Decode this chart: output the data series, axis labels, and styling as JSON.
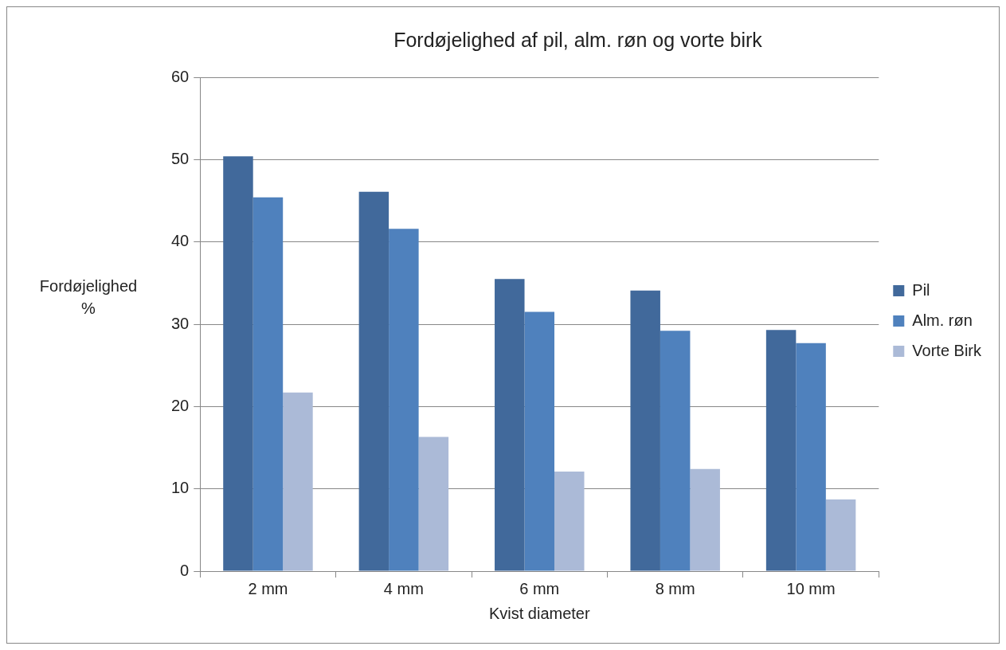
{
  "chart_data": {
    "type": "bar",
    "title": "Fordøjelighed af pil, alm. røn og vorte birk",
    "xlabel": "Kvist diameter",
    "ylabel": "Fordøjelighed %",
    "categories": [
      "2 mm",
      "4 mm",
      "6 mm",
      "8 mm",
      "10 mm"
    ],
    "series": [
      {
        "name": "Pil",
        "color": "#41699b",
        "values": [
          50.4,
          46.1,
          35.5,
          34.1,
          29.3
        ]
      },
      {
        "name": "Alm. røn",
        "color": "#4f81bd",
        "values": [
          45.4,
          41.6,
          31.5,
          29.2,
          27.7
        ]
      },
      {
        "name": "Vorte Birk",
        "color": "#abbad7",
        "values": [
          21.7,
          16.3,
          12.1,
          12.4,
          8.7
        ]
      }
    ],
    "ylim": [
      0,
      60
    ],
    "yticks": [
      0,
      10,
      20,
      30,
      40,
      50,
      60
    ],
    "grid": "y",
    "legend": "right"
  }
}
